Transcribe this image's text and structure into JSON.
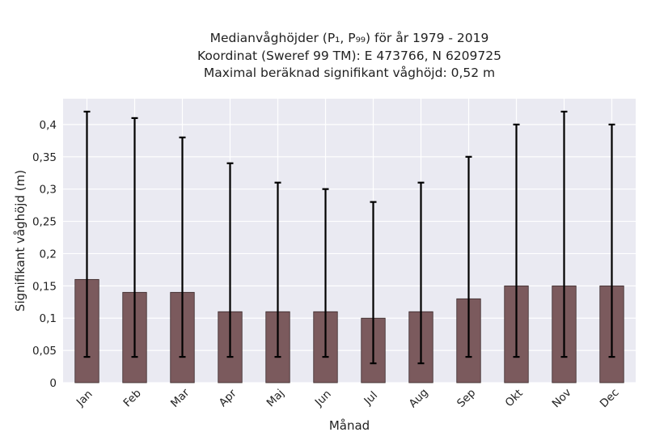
{
  "chart_data": {
    "type": "bar",
    "title": [
      "Medianvåghöjder (P₁, P₉₉) för år 1979 - 2019",
      "Koordinat (Sweref 99 TM): E 473766, N 6209725",
      "Maximal beräknad signifikant våghöjd: 0,52 m"
    ],
    "xlabel": "Månad",
    "ylabel": "Signifikant våghöjd (m)",
    "categories": [
      "Jan",
      "Feb",
      "Mar",
      "Apr",
      "Maj",
      "Jun",
      "Jul",
      "Aug",
      "Sep",
      "Okt",
      "Nov",
      "Dec"
    ],
    "values": [
      0.16,
      0.14,
      0.14,
      0.11,
      0.11,
      0.11,
      0.1,
      0.11,
      0.13,
      0.15,
      0.15,
      0.15
    ],
    "error_low": [
      0.04,
      0.04,
      0.04,
      0.04,
      0.04,
      0.04,
      0.03,
      0.03,
      0.04,
      0.04,
      0.04,
      0.04
    ],
    "error_high": [
      0.42,
      0.41,
      0.38,
      0.34,
      0.31,
      0.3,
      0.28,
      0.31,
      0.35,
      0.4,
      0.42,
      0.4
    ],
    "ylim": [
      0,
      0.44
    ],
    "yticks": [
      0,
      0.05,
      0.1,
      0.15,
      0.2,
      0.25,
      0.3,
      0.35,
      0.4
    ],
    "ytick_labels": [
      "0",
      "0,05",
      "0,1",
      "0,15",
      "0,2",
      "0,25",
      "0,3",
      "0,35",
      "0,4"
    ],
    "grid": true,
    "colors": {
      "bar": "#7b5a5d",
      "bar_edge": "#3a2a2b",
      "error": "#000000",
      "background": "#eaeaf2",
      "grid": "#ffffff"
    }
  }
}
